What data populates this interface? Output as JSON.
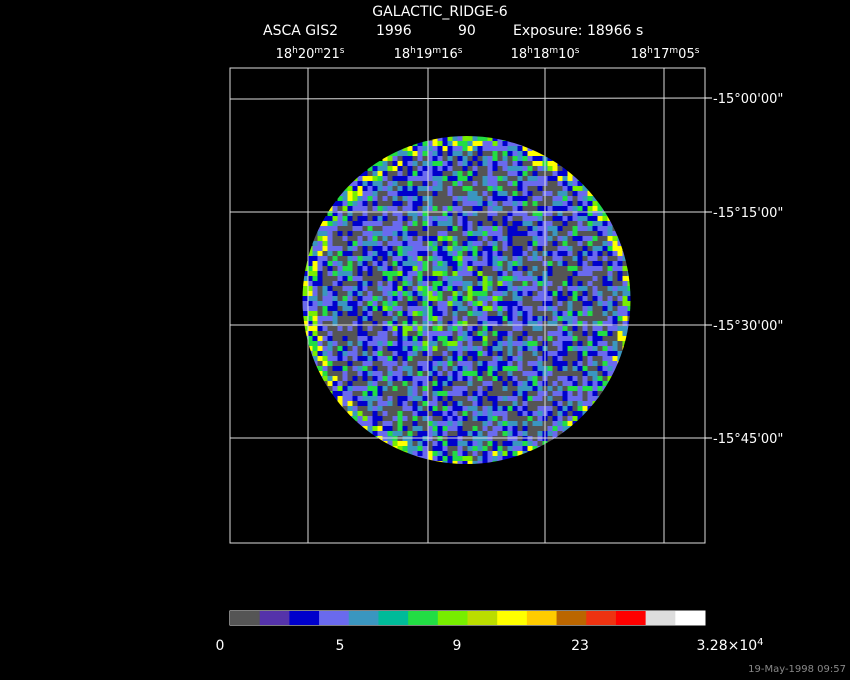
{
  "header": {
    "title": "GALACTIC_RIDGE-6",
    "instrument": "ASCA GIS2",
    "year": "1996",
    "number": "90",
    "exposure": "Exposure: 18966 s"
  },
  "ra_labels": [
    [
      "18",
      "h",
      "20",
      "m",
      "21",
      "s"
    ],
    [
      "18",
      "h",
      "19",
      "m",
      "16",
      "s"
    ],
    [
      "18",
      "h",
      "18",
      "m",
      "10",
      "s"
    ],
    [
      "18",
      "h",
      "17",
      "m",
      "05",
      "s"
    ]
  ],
  "dec_labels": [
    "-15°00'00\"",
    "-15°15'00\"",
    "-15°30'00\"",
    "-15°45'00\""
  ],
  "colorbar": {
    "colors": [
      "#555555",
      "#5533aa",
      "#0000cc",
      "#6a6aee",
      "#3a96c0",
      "#00bb99",
      "#22dd44",
      "#77ee00",
      "#bbdd00",
      "#ffff00",
      "#ffcc00",
      "#bb6600",
      "#ee3311",
      "#ff0000",
      "#dddddd",
      "#ffffff"
    ],
    "labels": [
      [
        "0"
      ],
      [
        "5"
      ],
      [
        "9"
      ],
      [
        "23"
      ],
      [
        "3.28×10",
        "4"
      ]
    ]
  },
  "timestamp": "19-May-1998 09:57"
}
